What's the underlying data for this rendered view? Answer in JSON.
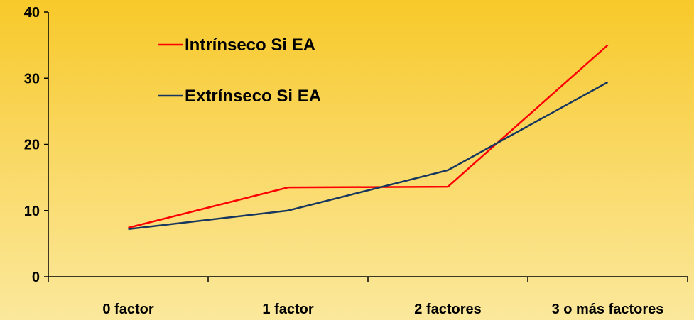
{
  "chart_data": {
    "type": "line",
    "categories": [
      "0 factor",
      "1 factor",
      "2 factores",
      "3 o más factores"
    ],
    "series": [
      {
        "name": "Intrínseco Si EA",
        "color": "#ff0000",
        "values": [
          7.4,
          13.5,
          13.6,
          35.0
        ]
      },
      {
        "name": "Extrínseco Si EA",
        "color": "#17375e",
        "values": [
          7.2,
          10.0,
          16.1,
          29.4
        ]
      }
    ],
    "yticks": [
      0,
      10,
      20,
      30,
      40
    ],
    "ylim": [
      0,
      40
    ],
    "legend_position": "top-left",
    "grid": false
  }
}
